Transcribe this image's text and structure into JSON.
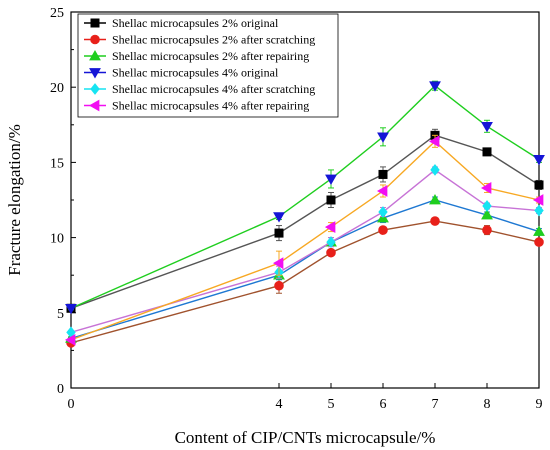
{
  "chart_data": {
    "type": "line",
    "title": "",
    "xlabel": "Content of CIP/CNTs microcapsule/%",
    "ylabel": "Fracture elongation/%",
    "x": [
      0,
      4,
      5,
      6,
      7,
      8,
      9
    ],
    "x_ticks": [
      "0",
      "4",
      "5",
      "6",
      "7",
      "8",
      "9"
    ],
    "y_ticks": [
      "0",
      "5",
      "10",
      "15",
      "20",
      "25"
    ],
    "ylim": [
      0,
      25
    ],
    "grid": false,
    "legend_position": "top-left",
    "series": [
      {
        "name": "Shellac microcapsules 2% original",
        "color": "#000000",
        "marker": "square",
        "values": [
          5.3,
          10.3,
          12.5,
          14.2,
          16.8,
          15.7,
          13.5
        ],
        "errors": [
          0.1,
          0.5,
          0.5,
          0.5,
          0.4,
          0.2,
          0.3
        ]
      },
      {
        "name": "Shellac microcapsules 2% after scratching",
        "color": "#e8201a",
        "marker": "circle",
        "values": [
          3.0,
          6.8,
          9.0,
          10.5,
          11.1,
          10.5,
          9.7
        ],
        "errors": [
          0.1,
          0.5,
          0.2,
          0.2,
          0.2,
          0.3,
          0.2
        ]
      },
      {
        "name": "Shellac microcapsules 2% after repairing",
        "color": "#1fce1f",
        "marker": "triangle-up",
        "values": [
          3.3,
          7.5,
          9.7,
          11.3,
          12.5,
          11.5,
          10.4
        ],
        "errors": [
          0.1,
          0.3,
          0.3,
          0.3,
          0.2,
          0.2,
          0.2
        ]
      },
      {
        "name": "Shellac microcapsules 4% original",
        "color": "#1515d6",
        "marker": "triangle-down",
        "values": [
          5.3,
          11.4,
          13.9,
          16.7,
          20.1,
          17.4,
          15.2
        ],
        "errors": [
          0.1,
          0.2,
          0.6,
          0.6,
          0.3,
          0.4,
          0.2
        ]
      },
      {
        "name": "Shellac microcapsules 4% after scratching",
        "color": "#16e4f2",
        "marker": "diamond",
        "values": [
          3.7,
          7.7,
          9.7,
          11.7,
          14.5,
          12.1,
          11.8
        ],
        "errors": [
          0.1,
          0.4,
          0.3,
          0.3,
          0.2,
          0.2,
          0.2
        ]
      },
      {
        "name": "Shellac microcapsules 4% after repairing",
        "color": "#f20ff2",
        "marker": "triangle-left",
        "values": [
          3.2,
          8.3,
          10.7,
          13.1,
          16.4,
          13.3,
          12.5
        ],
        "errors": [
          0.1,
          0.8,
          0.3,
          0.4,
          0.4,
          0.3,
          0.2
        ]
      }
    ],
    "series_line_colors": [
      "#555555",
      "#a0522d",
      "#1e78d2",
      "#1fce1f",
      "#c773d6",
      "#f7a823"
    ]
  }
}
